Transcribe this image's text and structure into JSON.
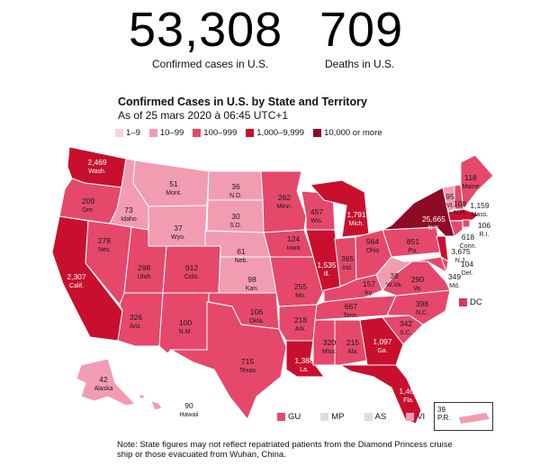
{
  "stats": {
    "cases": {
      "value": "53,308",
      "label": "Confirmed cases in U.S."
    },
    "deaths": {
      "value": "709",
      "label": "Deaths in U.S."
    }
  },
  "title": "Confirmed Cases in U.S. by State and Territory",
  "subtitle": "As of 25 mars 2020 à 06:45 UTC+1",
  "legend": [
    {
      "label": "1–9",
      "color": "#f7d3dc"
    },
    {
      "label": "10–99",
      "color": "#f29cb2"
    },
    {
      "label": "100–999",
      "color": "#e5486b"
    },
    {
      "label": "1,000–9,999",
      "color": "#c8102e"
    },
    {
      "label": "10,000 or more",
      "color": "#8e0b26"
    }
  ],
  "states": {
    "wa": {
      "value": "2,469",
      "name": "Wash."
    },
    "or": {
      "value": "209",
      "name": "Ore."
    },
    "ca": {
      "value": "2,307",
      "name": "Calif."
    },
    "id": {
      "value": "73",
      "name": "Idaho"
    },
    "nv": {
      "value": "278",
      "name": "Nev."
    },
    "mt": {
      "value": "51",
      "name": "Mont."
    },
    "wy": {
      "value": "37",
      "name": "Wyo."
    },
    "ut": {
      "value": "298",
      "name": "Utah"
    },
    "az": {
      "value": "326",
      "name": "Ariz."
    },
    "co": {
      "value": "912",
      "name": "Colo."
    },
    "nm": {
      "value": "100",
      "name": "N.M."
    },
    "nd": {
      "value": "36",
      "name": "N.D."
    },
    "sd": {
      "value": "30",
      "name": "S.D."
    },
    "ne": {
      "value": "61",
      "name": "Neb."
    },
    "ks": {
      "value": "98",
      "name": "Kan."
    },
    "ok": {
      "value": "106",
      "name": "Okla."
    },
    "tx": {
      "value": "715",
      "name": "Texas"
    },
    "mn": {
      "value": "262",
      "name": "Minn."
    },
    "ia": {
      "value": "124",
      "name": "Iowa"
    },
    "mo": {
      "value": "255",
      "name": "Mo."
    },
    "ar": {
      "value": "218",
      "name": "Ark."
    },
    "la": {
      "value": "1,388",
      "name": "La."
    },
    "wi": {
      "value": "457",
      "name": "Wis."
    },
    "il": {
      "value": "1,535",
      "name": "Ill."
    },
    "mi": {
      "value": "1,791",
      "name": "Mich."
    },
    "in": {
      "value": "365",
      "name": "Ind."
    },
    "oh": {
      "value": "564",
      "name": "Ohio"
    },
    "ky": {
      "value": "157",
      "name": "Ky."
    },
    "tn": {
      "value": "667",
      "name": "Tenn."
    },
    "ms": {
      "value": "320",
      "name": "Miss."
    },
    "al": {
      "value": "215",
      "name": "Ala."
    },
    "ga": {
      "value": "1,097",
      "name": "Ga."
    },
    "fl": {
      "value": "1,467",
      "name": "Fla."
    },
    "sc": {
      "value": "342",
      "name": "S.C."
    },
    "nc": {
      "value": "398",
      "name": "N.C."
    },
    "va": {
      "value": "290",
      "name": "Va."
    },
    "wv": {
      "value": "39",
      "name": "W.Va."
    },
    "pa": {
      "value": "851",
      "name": "Pa."
    },
    "ny": {
      "value": "25,665",
      "name": "N.Y."
    },
    "vt": {
      "value": "95",
      "name": "Vt."
    },
    "nh": {
      "value": "108",
      "name": "N.H."
    },
    "me": {
      "value": "118",
      "name": "Maine"
    },
    "ma": {
      "value": "1,159",
      "name": "Mass."
    },
    "ri": {
      "value": "106",
      "name": "R.I."
    },
    "ct": {
      "value": "618",
      "name": "Conn."
    },
    "nj": {
      "value": "3,675",
      "name": "N.J."
    },
    "de": {
      "value": "104",
      "name": "Del."
    },
    "md": {
      "value": "349",
      "name": "Md."
    },
    "ak": {
      "value": "42",
      "name": "Alaska"
    },
    "hi": {
      "value": "90",
      "name": "Hawaii"
    }
  },
  "dc_label": "DC",
  "territories": [
    {
      "label": "GU",
      "color": "#e5486b"
    },
    {
      "label": "MP",
      "color": "#dddddd"
    },
    {
      "label": "AS",
      "color": "#dddddd"
    },
    {
      "label": "VI",
      "color": "#f29cb2"
    }
  ],
  "pr": {
    "value": "39",
    "name": "P.R."
  },
  "note": "Note: State figures may not reflect repatriated patients from the Diamond Princess cruise ship or those evacuated from Wuhan, China."
}
